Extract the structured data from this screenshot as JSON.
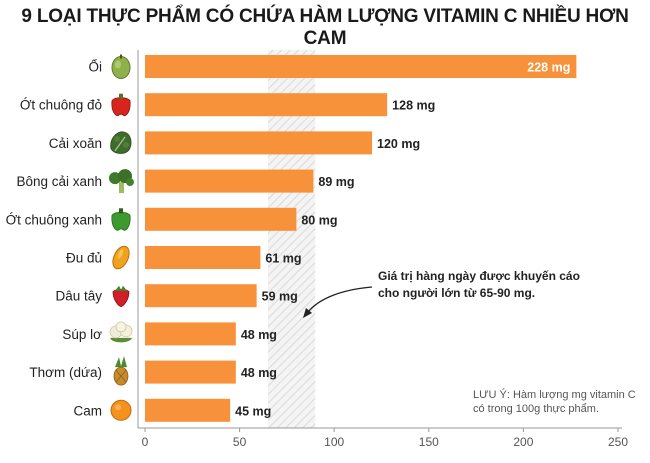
{
  "colors": {
    "bar": "#f7913a",
    "band": "#dcdcdc",
    "axis": "#999999"
  },
  "annotation": {
    "line1": "Giá trị hàng ngày được khuyến cáo",
    "line2": "cho người lớn từ 65-90 mg."
  },
  "note": {
    "line1": "LƯU Ý: Hàm lượng mg vitamin C",
    "line2": "có trong 100g thực phẩm."
  },
  "chart_data": {
    "type": "bar",
    "orientation": "horizontal",
    "title": "9 LOẠI THỰC PHẨM CÓ CHỨA HÀM LƯỢNG VITAMIN C NHIỀU HƠN CAM",
    "categories": [
      "Ổi",
      "Ớt chuông đỏ",
      "Cải xoăn",
      "Bông cải xanh",
      "Ớt chuông xanh",
      "Đu đủ",
      "Dâu tây",
      "Súp lơ",
      "Thơm (dứa)",
      "Cam"
    ],
    "icons": [
      "guava-icon",
      "red-bell-pepper-icon",
      "kale-icon",
      "broccoli-icon",
      "green-bell-pepper-icon",
      "papaya-icon",
      "strawberry-icon",
      "cauliflower-icon",
      "pineapple-icon",
      "orange-icon"
    ],
    "values": [
      228,
      128,
      120,
      89,
      80,
      61,
      59,
      48,
      48,
      45
    ],
    "value_labels": [
      "228 mg",
      "128 mg",
      "120 mg",
      "89 mg",
      "80 mg",
      "61 mg",
      "59 mg",
      "48 mg",
      "48 mg",
      "45 mg"
    ],
    "xlim": [
      0,
      250
    ],
    "xticks": [
      "0",
      "50",
      "100",
      "150",
      "200",
      "250"
    ],
    "reference_band": [
      65,
      90
    ],
    "grid": false,
    "xlabel": "",
    "ylabel": ""
  }
}
